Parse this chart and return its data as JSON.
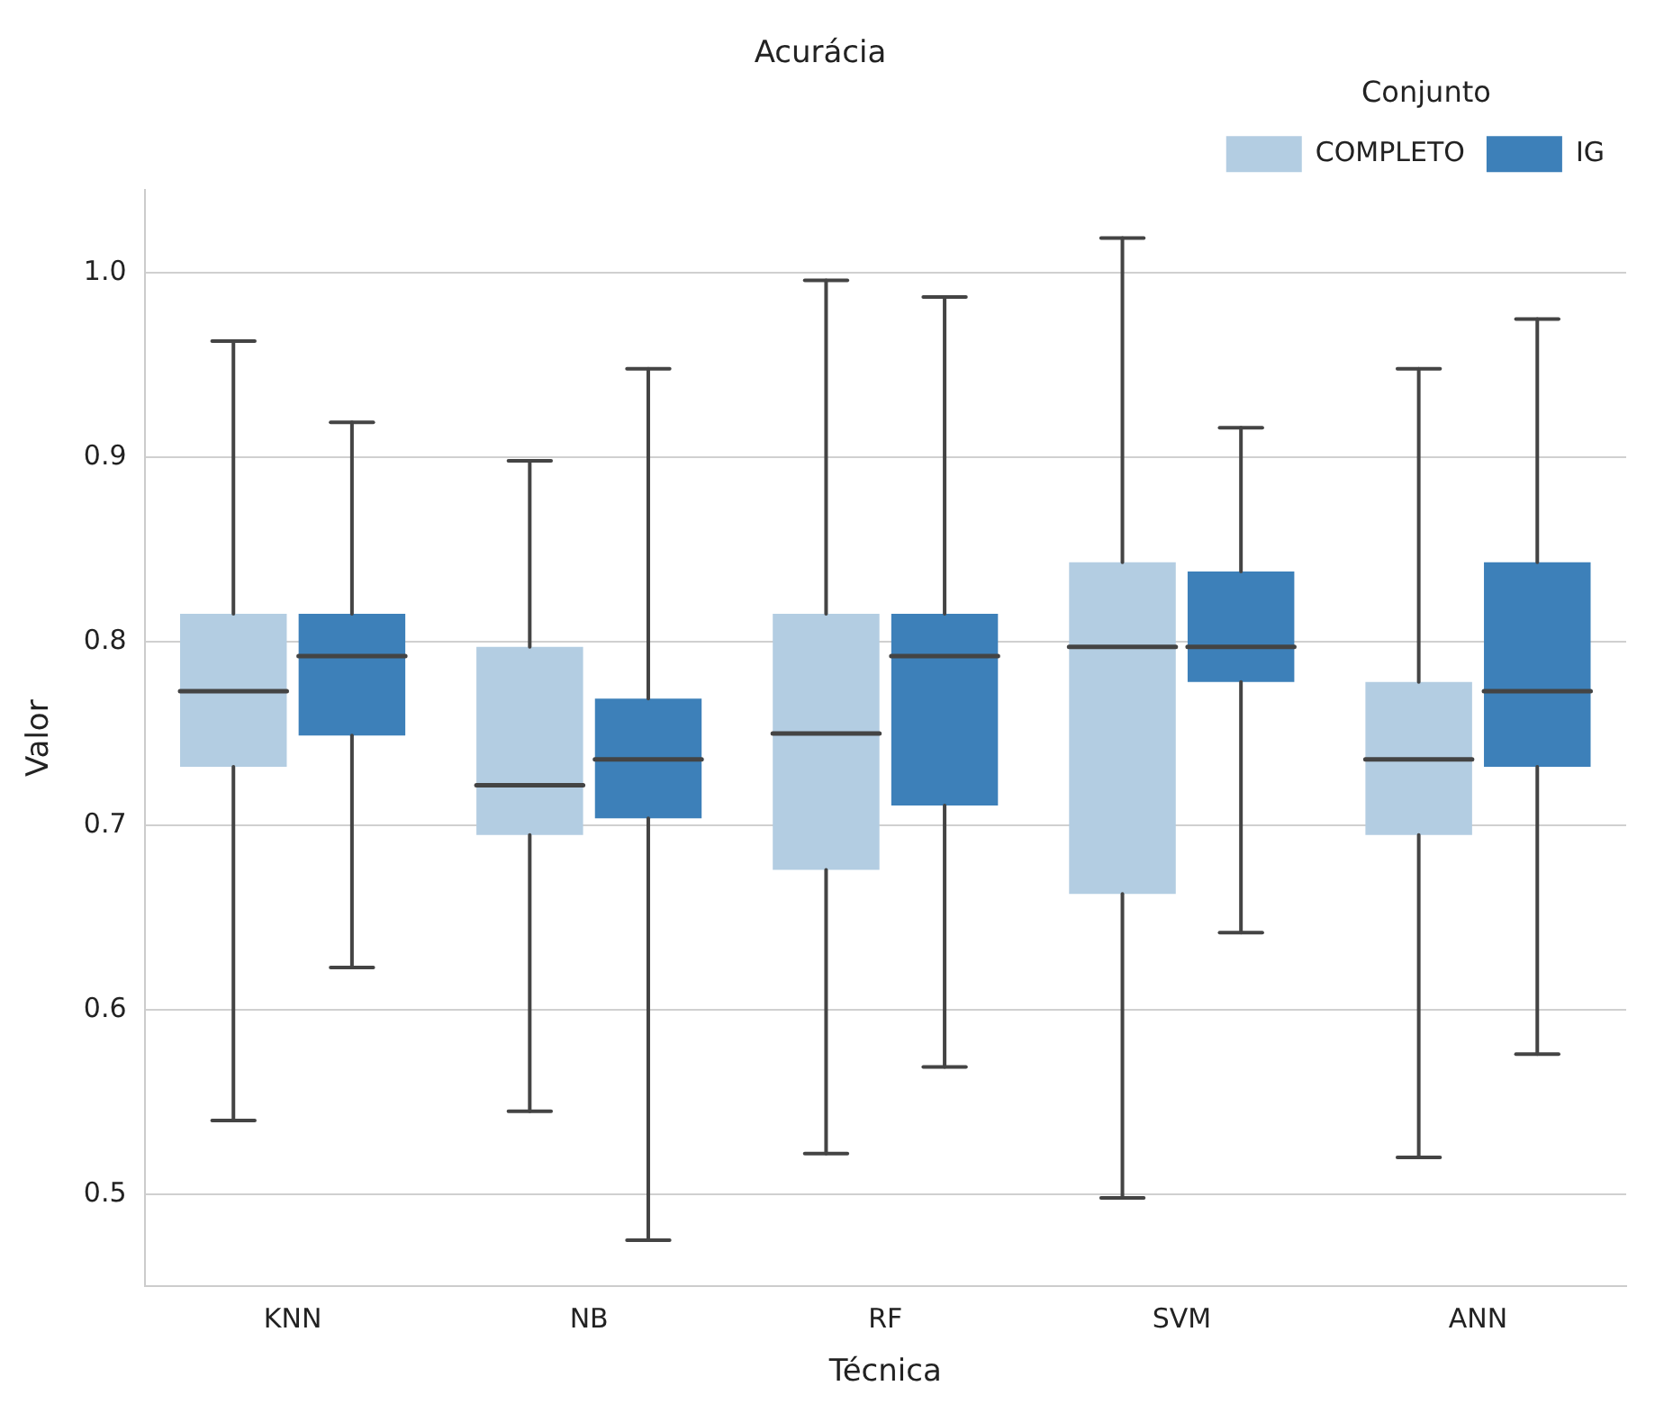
{
  "chart_data": {
    "type": "box",
    "title": "Acurácia",
    "xlabel": "Técnica",
    "ylabel": "Valor",
    "legend_title": "Conjunto",
    "legend": "top right",
    "grid": "y",
    "categories": [
      "KNN",
      "NB",
      "RF",
      "SVM",
      "ANN"
    ],
    "ylim": [
      0.45,
      1.045
    ],
    "yticks": [
      {
        "value": 0.5,
        "label": "0.5"
      },
      {
        "value": 0.6,
        "label": "0.6"
      },
      {
        "value": 0.7,
        "label": "0.7"
      },
      {
        "value": 0.8,
        "label": "0.8"
      },
      {
        "value": 0.9,
        "label": "0.9"
      },
      {
        "value": 1.0,
        "label": "1.0"
      }
    ],
    "series": [
      {
        "name": "COMPLETO",
        "color": "#b3cde2",
        "boxes": [
          {
            "low": 0.54,
            "q1": 0.732,
            "median": 0.773,
            "q3": 0.815,
            "high": 0.963
          },
          {
            "low": 0.545,
            "q1": 0.695,
            "median": 0.722,
            "q3": 0.797,
            "high": 0.898
          },
          {
            "low": 0.522,
            "q1": 0.676,
            "median": 0.75,
            "q3": 0.815,
            "high": 0.996
          },
          {
            "low": 0.498,
            "q1": 0.663,
            "median": 0.797,
            "q3": 0.843,
            "high": 1.019
          },
          {
            "low": 0.52,
            "q1": 0.695,
            "median": 0.736,
            "q3": 0.778,
            "high": 0.948
          }
        ]
      },
      {
        "name": "IG",
        "color": "#3d80b9",
        "boxes": [
          {
            "low": 0.623,
            "q1": 0.749,
            "median": 0.792,
            "q3": 0.815,
            "high": 0.919
          },
          {
            "low": 0.475,
            "q1": 0.704,
            "median": 0.736,
            "q3": 0.769,
            "high": 0.948
          },
          {
            "low": 0.569,
            "q1": 0.711,
            "median": 0.792,
            "q3": 0.815,
            "high": 0.987
          },
          {
            "low": 0.642,
            "q1": 0.778,
            "median": 0.797,
            "q3": 0.838,
            "high": 0.916
          },
          {
            "low": 0.576,
            "q1": 0.732,
            "median": 0.773,
            "q3": 0.843,
            "high": 0.975
          }
        ]
      }
    ]
  }
}
